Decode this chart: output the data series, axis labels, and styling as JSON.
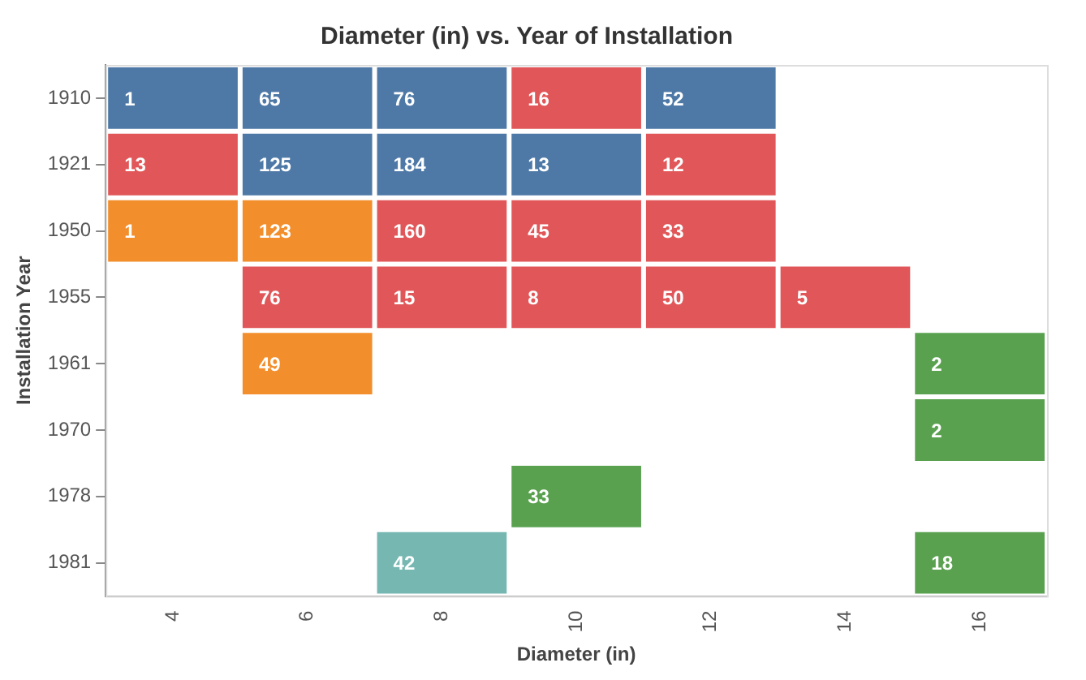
{
  "chart_data": {
    "type": "heatmap",
    "title": "Diameter (in) vs. Year of Installation",
    "xlabel": "Diameter (in)",
    "ylabel": "Installation Year",
    "categories": [
      "4",
      "6",
      "8",
      "10",
      "12",
      "14",
      "16"
    ],
    "y_categories": [
      "1910",
      "1921",
      "1950",
      "1955",
      "1961",
      "1970",
      "1978",
      "1981"
    ],
    "cells": [
      [
        1,
        65,
        76,
        16,
        52,
        null,
        null
      ],
      [
        13,
        125,
        184,
        13,
        12,
        null,
        null
      ],
      [
        1,
        123,
        160,
        45,
        33,
        null,
        null
      ],
      [
        null,
        76,
        15,
        8,
        50,
        5,
        null
      ],
      [
        null,
        49,
        null,
        null,
        null,
        null,
        2
      ],
      [
        null,
        null,
        null,
        null,
        null,
        null,
        2
      ],
      [
        null,
        null,
        null,
        33,
        null,
        null,
        null
      ],
      [
        null,
        null,
        42,
        null,
        null,
        null,
        18
      ]
    ],
    "colors": [
      [
        "#4e79a7",
        "#4e79a7",
        "#4e79a7",
        "#e15759",
        "#4e79a7",
        null,
        null
      ],
      [
        "#e15759",
        "#4e79a7",
        "#4e79a7",
        "#4e79a7",
        "#e15759",
        null,
        null
      ],
      [
        "#f28e2b",
        "#f28e2b",
        "#e15759",
        "#e15759",
        "#e15759",
        null,
        null
      ],
      [
        null,
        "#e15759",
        "#e15759",
        "#e15759",
        "#e15759",
        "#e15759",
        null
      ],
      [
        null,
        "#f28e2b",
        null,
        null,
        null,
        null,
        "#59a14f"
      ],
      [
        null,
        null,
        null,
        null,
        null,
        null,
        "#59a14f"
      ],
      [
        null,
        null,
        null,
        "#59a14f",
        null,
        null,
        null
      ],
      [
        null,
        null,
        "#76b7b2",
        null,
        null,
        null,
        "#59a14f"
      ]
    ],
    "data_labels": true,
    "grid": false,
    "legend": false
  }
}
